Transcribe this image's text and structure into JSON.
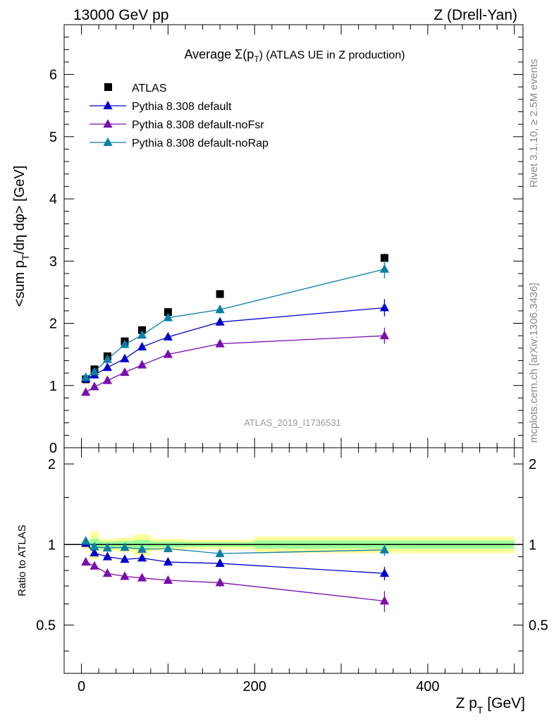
{
  "header": {
    "left": "13000 GeV pp",
    "right": "Z (Drell-Yan)"
  },
  "side_labels": {
    "rivet": "Rivet 3.1.10, ≥ 2.5M events",
    "mcplots": "mcplots.cern.ch [arXiv:1306.3436]"
  },
  "watermark": "ATLAS_2019_I1736531",
  "colors": {
    "atlas": "#000000",
    "default": "#0000cc",
    "noFsr": "#7a0eab",
    "noRap": "#0a7fa5",
    "band_outer": "#ffff99",
    "band_inner": "#99ff99"
  },
  "chart_data": [
    {
      "type": "scatter",
      "title": "Average Σ(p_T) (ATLAS UE in Z production)",
      "title_parts": {
        "pre": "Average ",
        "sigma": "Σ(p",
        "sub": "T",
        "post": ") (ATLAS UE in Z production)"
      },
      "ylabel": "<sum p_T/dη dφ> [GeV]",
      "ylabel_parts": {
        "a": "<sum p",
        "sub": "T",
        "b": "/dη dφ> [GeV]"
      },
      "xlim": [
        -20,
        510
      ],
      "ylim": [
        0,
        6.8
      ],
      "yticks": [
        0,
        1,
        2,
        3,
        4,
        5,
        6
      ],
      "legend_position": "top-left",
      "x": [
        5,
        15,
        30,
        50,
        70,
        100,
        160,
        350
      ],
      "series": [
        {
          "name": "ATLAS",
          "key": "atlas",
          "marker": "square",
          "values": [
            1.1,
            1.26,
            1.47,
            1.71,
            1.89,
            2.18,
            2.47,
            3.05
          ],
          "errors": [
            0.02,
            0.02,
            0.02,
            0.03,
            0.03,
            0.04,
            0.04,
            0.07
          ]
        },
        {
          "name": "Pythia 8.308 default",
          "key": "default",
          "marker": "triangle",
          "values": [
            1.11,
            1.17,
            1.29,
            1.43,
            1.62,
            1.78,
            2.02,
            2.25
          ],
          "errors": [
            0.02,
            0.02,
            0.02,
            0.03,
            0.03,
            0.04,
            0.06,
            0.14
          ]
        },
        {
          "name": "Pythia 8.308 default-noFsr",
          "key": "noFsr",
          "marker": "triangle",
          "values": [
            0.89,
            0.98,
            1.08,
            1.21,
            1.33,
            1.5,
            1.67,
            1.8
          ],
          "errors": [
            0.02,
            0.02,
            0.02,
            0.03,
            0.03,
            0.03,
            0.05,
            0.13
          ]
        },
        {
          "name": "Pythia 8.308 default-noRap",
          "key": "noRap",
          "marker": "triangle",
          "values": [
            1.13,
            1.22,
            1.42,
            1.66,
            1.81,
            2.09,
            2.22,
            2.87
          ],
          "errors": [
            0.02,
            0.02,
            0.03,
            0.03,
            0.03,
            0.04,
            0.07,
            0.15
          ]
        }
      ]
    },
    {
      "type": "line",
      "ylabel": "Ratio to ATLAS",
      "xlabel": "Z p_T [GeV]",
      "xlabel_parts": {
        "a": "Z p",
        "sub": "T",
        "b": " [GeV]"
      },
      "xlim": [
        -20,
        510
      ],
      "ylim": [
        0.33,
        2.3
      ],
      "yticks": [
        0.5,
        1,
        2
      ],
      "xticks": [
        0,
        200,
        400
      ],
      "x": [
        5,
        15,
        30,
        50,
        70,
        100,
        160,
        350
      ],
      "reference_line": 1,
      "bands": {
        "edges": [
          0,
          10,
          20,
          40,
          60,
          80,
          120,
          200,
          500
        ],
        "outer_half_width": [
          0.04,
          0.12,
          0.05,
          0.06,
          0.09,
          0.05,
          0.04,
          0.07
        ],
        "inner_half_width": [
          0.02,
          0.05,
          0.025,
          0.03,
          0.04,
          0.025,
          0.02,
          0.035
        ]
      },
      "series": [
        {
          "name": "Pythia 8.308 default",
          "key": "default",
          "values": [
            1.01,
            0.93,
            0.9,
            0.88,
            0.89,
            0.86,
            0.85,
            0.78
          ],
          "errors": [
            0.02,
            0.02,
            0.015,
            0.015,
            0.015,
            0.015,
            0.025,
            0.045
          ]
        },
        {
          "name": "Pythia 8.308 default-noFsr",
          "key": "noFsr",
          "values": [
            0.86,
            0.83,
            0.78,
            0.76,
            0.75,
            0.735,
            0.72,
            0.615
          ],
          "errors": [
            0.015,
            0.015,
            0.015,
            0.012,
            0.012,
            0.012,
            0.025,
            0.055
          ]
        },
        {
          "name": "Pythia 8.308 default-noRap",
          "key": "noRap",
          "values": [
            1.03,
            0.98,
            0.97,
            0.975,
            0.96,
            0.965,
            0.925,
            0.955
          ],
          "errors": [
            0.015,
            0.015,
            0.015,
            0.015,
            0.015,
            0.015,
            0.03,
            0.05
          ]
        }
      ]
    }
  ]
}
